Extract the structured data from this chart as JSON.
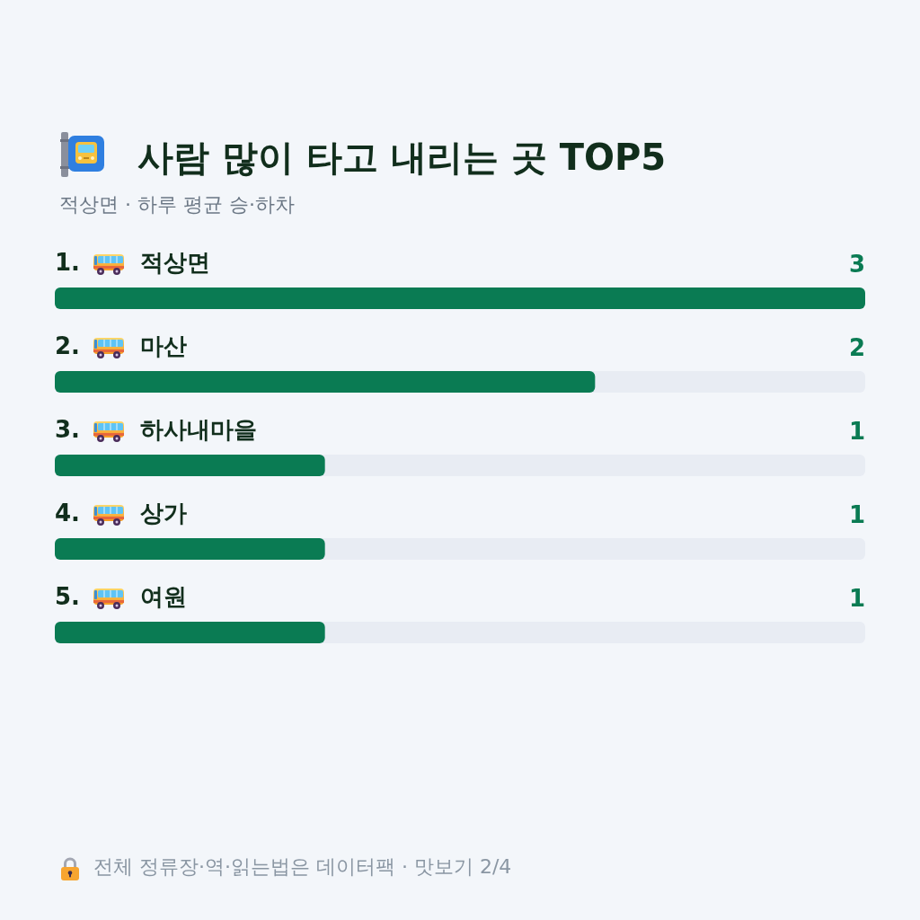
{
  "chart_data": {
    "type": "bar",
    "orientation": "horizontal",
    "title": "사람 많이 타고 내리는 곳 TOP5",
    "subtitle": "적상면 · 하루 평균 승·하차",
    "categories": [
      "1. 적상면",
      "2. 마산",
      "3. 하사내마을",
      "4. 상가",
      "5. 여원"
    ],
    "values": [
      3,
      2,
      1,
      1,
      1
    ],
    "color": "#0a7b53",
    "xlim": [
      0,
      3
    ],
    "data_labels": true,
    "tick_labels": "y",
    "annotations": [
      "전체 정류장·역·읽는법은 데이터팩 · 맛보기 2/4"
    ]
  }
}
